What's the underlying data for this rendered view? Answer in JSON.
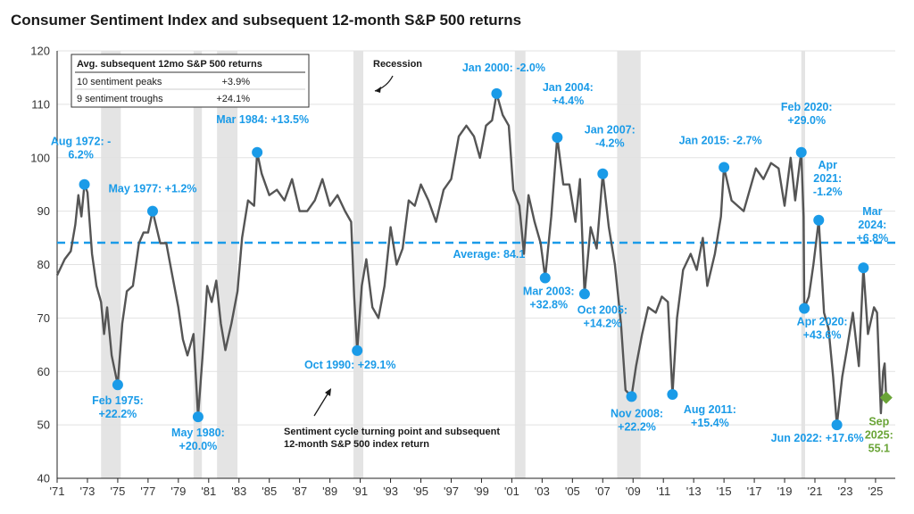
{
  "colors": {
    "line": "#555555",
    "accent": "#1a9be8",
    "latest": "#6aa437",
    "recession": "#e4e4e4",
    "grid": "#e2e2e2",
    "text": "#1a1a1a"
  },
  "chart_data": {
    "type": "line",
    "title": "Consumer Sentiment Index and subsequent 12-month S&P 500 returns",
    "xlabel": "",
    "ylabel": "",
    "xlim": [
      1971,
      2026.3
    ],
    "ylim": [
      40,
      120
    ],
    "yticks": [
      40,
      50,
      60,
      70,
      80,
      90,
      100,
      110,
      120
    ],
    "xticks": [
      {
        "x": 1971,
        "label": "'71"
      },
      {
        "x": 1973,
        "label": "'73"
      },
      {
        "x": 1975,
        "label": "'75"
      },
      {
        "x": 1977,
        "label": "'77"
      },
      {
        "x": 1979,
        "label": "'79"
      },
      {
        "x": 1981,
        "label": "'81"
      },
      {
        "x": 1983,
        "label": "'83"
      },
      {
        "x": 1985,
        "label": "'85"
      },
      {
        "x": 1987,
        "label": "'87"
      },
      {
        "x": 1989,
        "label": "'89"
      },
      {
        "x": 1991,
        "label": "'91"
      },
      {
        "x": 1993,
        "label": "'93"
      },
      {
        "x": 1995,
        "label": "'95"
      },
      {
        "x": 1997,
        "label": "'97"
      },
      {
        "x": 1999,
        "label": "'99"
      },
      {
        "x": 2001,
        "label": "'01"
      },
      {
        "x": 2003,
        "label": "'03"
      },
      {
        "x": 2005,
        "label": "'05"
      },
      {
        "x": 2007,
        "label": "'07"
      },
      {
        "x": 2009,
        "label": "'09"
      },
      {
        "x": 2011,
        "label": "'11"
      },
      {
        "x": 2013,
        "label": "'13"
      },
      {
        "x": 2015,
        "label": "'15"
      },
      {
        "x": 2017,
        "label": "'17"
      },
      {
        "x": 2019,
        "label": "'19"
      },
      {
        "x": 2021,
        "label": "'21"
      },
      {
        "x": 2023,
        "label": "'23"
      },
      {
        "x": 2025,
        "label": "'25"
      }
    ],
    "grid": {
      "horizontal": true,
      "vertical": false
    },
    "average": {
      "value": 84.1,
      "label": "Average: 84.1"
    },
    "recessions": [
      [
        1973.9,
        1975.2
      ],
      [
        1980.0,
        1980.55
      ],
      [
        1981.55,
        1982.9
      ],
      [
        1990.55,
        1991.2
      ],
      [
        2001.2,
        2001.9
      ],
      [
        2007.95,
        2009.5
      ],
      [
        2020.1,
        2020.35
      ]
    ],
    "series": [
      {
        "values": [
          [
            1971.0,
            78.0
          ],
          [
            1971.5,
            81.0
          ],
          [
            1971.9,
            82.5
          ],
          [
            1972.2,
            87.5
          ],
          [
            1972.4,
            93.0
          ],
          [
            1972.6,
            89.0
          ],
          [
            1972.8,
            95.0
          ],
          [
            1973.0,
            93.5
          ],
          [
            1973.3,
            82.0
          ],
          [
            1973.6,
            76.0
          ],
          [
            1973.9,
            73.0
          ],
          [
            1974.1,
            67.0
          ],
          [
            1974.3,
            72.0
          ],
          [
            1974.6,
            63.0
          ],
          [
            1975.0,
            57.5
          ],
          [
            1975.3,
            69.0
          ],
          [
            1975.6,
            75.0
          ],
          [
            1976.0,
            76.0
          ],
          [
            1976.4,
            84.0
          ],
          [
            1976.7,
            86.0
          ],
          [
            1977.0,
            86.0
          ],
          [
            1977.3,
            90.0
          ],
          [
            1977.8,
            84.0
          ],
          [
            1978.2,
            84.0
          ],
          [
            1978.6,
            78.0
          ],
          [
            1979.0,
            72.0
          ],
          [
            1979.3,
            66.0
          ],
          [
            1979.6,
            63.0
          ],
          [
            1980.0,
            67.0
          ],
          [
            1980.3,
            51.5
          ],
          [
            1980.6,
            63.0
          ],
          [
            1980.9,
            76.0
          ],
          [
            1981.2,
            73.0
          ],
          [
            1981.5,
            77.0
          ],
          [
            1981.8,
            69.0
          ],
          [
            1982.1,
            64.0
          ],
          [
            1982.5,
            69.0
          ],
          [
            1982.9,
            75.0
          ],
          [
            1983.2,
            85.0
          ],
          [
            1983.6,
            92.0
          ],
          [
            1984.0,
            91.0
          ],
          [
            1984.2,
            101.0
          ],
          [
            1984.5,
            97.0
          ],
          [
            1985.0,
            93.0
          ],
          [
            1985.5,
            94.0
          ],
          [
            1986.0,
            92.0
          ],
          [
            1986.5,
            96.0
          ],
          [
            1987.0,
            90.0
          ],
          [
            1987.5,
            90.0
          ],
          [
            1988.0,
            92.0
          ],
          [
            1988.5,
            96.0
          ],
          [
            1989.0,
            91.0
          ],
          [
            1989.5,
            93.0
          ],
          [
            1990.0,
            90.0
          ],
          [
            1990.4,
            88.0
          ],
          [
            1990.6,
            74.0
          ],
          [
            1990.8,
            63.9
          ],
          [
            1991.1,
            76.0
          ],
          [
            1991.4,
            81.0
          ],
          [
            1991.8,
            72.0
          ],
          [
            1992.2,
            70.0
          ],
          [
            1992.6,
            76.0
          ],
          [
            1993.0,
            87.0
          ],
          [
            1993.4,
            80.0
          ],
          [
            1993.8,
            83.0
          ],
          [
            1994.2,
            92.0
          ],
          [
            1994.6,
            91.0
          ],
          [
            1995.0,
            95.0
          ],
          [
            1995.5,
            92.0
          ],
          [
            1996.0,
            88.0
          ],
          [
            1996.5,
            94.0
          ],
          [
            1997.0,
            96.0
          ],
          [
            1997.5,
            104.0
          ],
          [
            1998.0,
            106.0
          ],
          [
            1998.5,
            104.0
          ],
          [
            1998.9,
            100.0
          ],
          [
            1999.3,
            106.0
          ],
          [
            1999.7,
            107.0
          ],
          [
            2000.0,
            112.0
          ],
          [
            2000.4,
            108.0
          ],
          [
            2000.8,
            106.0
          ],
          [
            2001.1,
            94.0
          ],
          [
            2001.5,
            91.0
          ],
          [
            2001.8,
            82.0
          ],
          [
            2002.1,
            93.0
          ],
          [
            2002.5,
            88.0
          ],
          [
            2002.9,
            84.0
          ],
          [
            2003.2,
            77.5
          ],
          [
            2003.6,
            89.0
          ],
          [
            2004.0,
            103.8
          ],
          [
            2004.4,
            95.0
          ],
          [
            2004.8,
            95.0
          ],
          [
            2005.2,
            88.0
          ],
          [
            2005.5,
            96.0
          ],
          [
            2005.8,
            74.5
          ],
          [
            2006.2,
            87.0
          ],
          [
            2006.6,
            83.0
          ],
          [
            2007.0,
            97.0
          ],
          [
            2007.4,
            87.0
          ],
          [
            2007.8,
            80.0
          ],
          [
            2008.2,
            69.0
          ],
          [
            2008.5,
            56.5
          ],
          [
            2008.9,
            55.3
          ],
          [
            2009.2,
            61.0
          ],
          [
            2009.6,
            67.0
          ],
          [
            2010.0,
            72.0
          ],
          [
            2010.5,
            71.0
          ],
          [
            2010.9,
            74.0
          ],
          [
            2011.3,
            73.0
          ],
          [
            2011.6,
            55.7
          ],
          [
            2011.9,
            70.0
          ],
          [
            2012.3,
            79.0
          ],
          [
            2012.8,
            82.0
          ],
          [
            2013.2,
            79.0
          ],
          [
            2013.6,
            85.0
          ],
          [
            2013.9,
            76.0
          ],
          [
            2014.4,
            82.0
          ],
          [
            2014.8,
            89.0
          ],
          [
            2015.0,
            98.2
          ],
          [
            2015.5,
            92.0
          ],
          [
            2015.9,
            91.0
          ],
          [
            2016.3,
            90.0
          ],
          [
            2016.8,
            95.0
          ],
          [
            2017.1,
            98.0
          ],
          [
            2017.6,
            96.0
          ],
          [
            2018.1,
            99.0
          ],
          [
            2018.6,
            98.0
          ],
          [
            2019.0,
            91.0
          ],
          [
            2019.4,
            100.0
          ],
          [
            2019.7,
            92.0
          ],
          [
            2020.0,
            99.0
          ],
          [
            2020.1,
            101.0
          ],
          [
            2020.25,
            89.0
          ],
          [
            2020.3,
            71.8
          ],
          [
            2020.6,
            74.0
          ],
          [
            2020.9,
            80.0
          ],
          [
            2021.25,
            88.3
          ],
          [
            2021.6,
            71.0
          ],
          [
            2021.9,
            68.0
          ],
          [
            2022.2,
            59.0
          ],
          [
            2022.45,
            50.0
          ],
          [
            2022.8,
            59.0
          ],
          [
            2023.1,
            64.0
          ],
          [
            2023.5,
            71.0
          ],
          [
            2023.9,
            61.0
          ],
          [
            2024.2,
            79.4
          ],
          [
            2024.5,
            67.0
          ],
          [
            2024.9,
            72.0
          ],
          [
            2025.1,
            71.0
          ],
          [
            2025.35,
            52.2
          ],
          [
            2025.5,
            60.0
          ],
          [
            2025.6,
            61.5
          ],
          [
            2025.7,
            55.1
          ]
        ]
      }
    ],
    "peaks": [
      {
        "x": 1972.8,
        "y": 95.0,
        "lines": [
          "Aug 1972: -",
          "6.2%"
        ]
      },
      {
        "x": 1977.3,
        "y": 90.0,
        "lines": [
          "May 1977: +1.2%"
        ]
      },
      {
        "x": 1984.2,
        "y": 101.0,
        "lines": [
          "Mar 1984: +13.5%"
        ]
      },
      {
        "x": 2000.0,
        "y": 112.0,
        "lines": [
          "Jan 2000: -2.0%"
        ]
      },
      {
        "x": 2004.0,
        "y": 103.8,
        "lines": [
          "Jan 2004:",
          "+4.4%"
        ]
      },
      {
        "x": 2007.0,
        "y": 97.0,
        "lines": [
          "Jan 2007:",
          "-4.2%"
        ]
      },
      {
        "x": 2015.0,
        "y": 98.2,
        "lines": [
          "Jan 2015: -2.7%"
        ]
      },
      {
        "x": 2020.1,
        "y": 101.0,
        "lines": [
          "Feb 2020:",
          "+29.0%"
        ]
      },
      {
        "x": 2021.25,
        "y": 88.3,
        "lines": [
          "Apr",
          "2021:",
          "-1.2%"
        ]
      },
      {
        "x": 2024.2,
        "y": 79.4,
        "lines": [
          "Mar",
          "2024:",
          "+6.8%"
        ]
      }
    ],
    "troughs": [
      {
        "x": 1975.0,
        "y": 57.5,
        "lines": [
          "Feb 1975:",
          "+22.2%"
        ]
      },
      {
        "x": 1980.3,
        "y": 51.5,
        "lines": [
          "May 1980:",
          "+20.0%"
        ]
      },
      {
        "x": 1990.8,
        "y": 63.9,
        "lines": [
          "Oct 1990: +29.1%"
        ]
      },
      {
        "x": 2003.2,
        "y": 77.5,
        "lines": [
          "Mar 2003:",
          "+32.8%"
        ]
      },
      {
        "x": 2005.8,
        "y": 74.5,
        "lines": [
          "Oct 2005:",
          "+14.2%"
        ]
      },
      {
        "x": 2008.9,
        "y": 55.3,
        "lines": [
          "Nov 2008:",
          "+22.2%"
        ]
      },
      {
        "x": 2011.6,
        "y": 55.7,
        "lines": [
          "Aug 2011:",
          "+15.4%"
        ]
      },
      {
        "x": 2020.3,
        "y": 71.8,
        "lines": [
          "Apr 2020:",
          "+43.6%"
        ]
      },
      {
        "x": 2022.45,
        "y": 50.0,
        "lines": [
          "Jun 2022: +17.6%"
        ]
      }
    ],
    "latest": {
      "x": 2025.7,
      "y": 55.1,
      "lines": [
        "Sep",
        "2025:",
        "55.1"
      ]
    },
    "annotations": {
      "recession_label": "Recession",
      "turning_point": [
        "Sentiment cycle turning point and subsequent",
        "12-month S&P 500 index return"
      ]
    },
    "table": {
      "header": "Avg. subsequent 12mo S&P 500 returns",
      "rows": [
        {
          "label": "10 sentiment peaks",
          "value": "+3.9%"
        },
        {
          "label": "9 sentiment troughs",
          "value": "+24.1%"
        }
      ]
    }
  }
}
